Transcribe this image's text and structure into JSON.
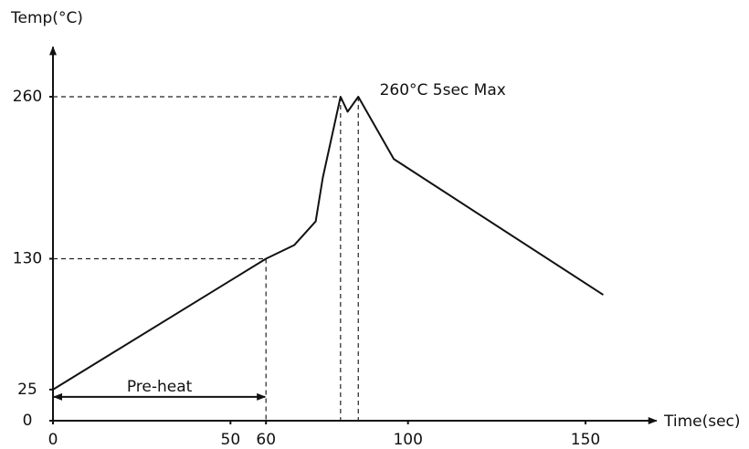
{
  "chart_data": {
    "type": "line",
    "y_label": "Temp(°C)",
    "x_label": "Time(sec)",
    "x": [
      0,
      60,
      68,
      74,
      76,
      81,
      83,
      86,
      96,
      155
    ],
    "series": [
      {
        "color": "#111111",
        "values": [
          25,
          130,
          141,
          160,
          195,
          260,
          248,
          260,
          210,
          101
        ]
      }
    ],
    "xlim": [
      0,
      170
    ],
    "ylim": [
      0,
      300
    ],
    "xticks": [
      0,
      50,
      60,
      100,
      150
    ],
    "yticks": [
      0,
      25,
      130,
      260
    ],
    "annotations": [
      {
        "text": "260°C 5sec Max",
        "x": 92,
        "y": 265
      }
    ],
    "preheat": {
      "label": "Pre-heat",
      "x": [
        0,
        60
      ]
    },
    "grid": false
  }
}
